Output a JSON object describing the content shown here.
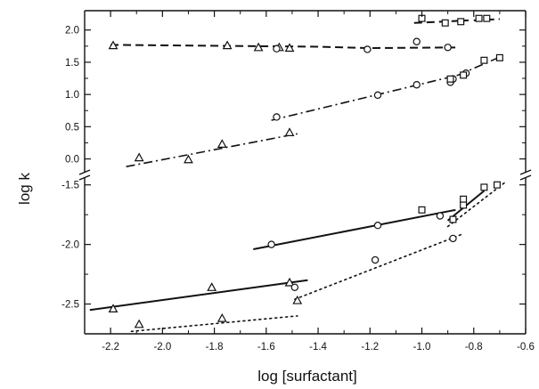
{
  "chart_data": {
    "type": "scatter",
    "title": "",
    "xlabel": "log [surfactant]",
    "ylabel": "log k",
    "xlim": [
      -2.3,
      -0.6
    ],
    "x_ticks": [
      "-2.2",
      "-2.0",
      "-1.8",
      "-1.6",
      "-1.4",
      "-1.2",
      "-1.0",
      "-0.8",
      "-0.6"
    ],
    "x_tick_values": [
      -2.2,
      -2.0,
      -1.8,
      -1.6,
      -1.4,
      -1.2,
      -1.0,
      -0.8,
      -0.6
    ],
    "panels": [
      {
        "position": "upper",
        "ylim": [
          -0.2,
          2.3
        ],
        "y_ticks": [
          "0.0",
          "0.5",
          "1.0",
          "1.5",
          "2.0"
        ],
        "y_tick_values": [
          0.0,
          0.5,
          1.0,
          1.5,
          2.0
        ],
        "series": [
          {
            "marker": "triangle",
            "x": [
              -2.19,
              -1.75,
              -1.63,
              -1.55,
              -1.51
            ],
            "y": [
              1.76,
              1.76,
              1.73,
              1.73,
              1.72
            ]
          },
          {
            "marker": "circle",
            "x": [
              -1.56,
              -1.21,
              -1.02,
              -0.9
            ],
            "y": [
              1.71,
              1.7,
              1.82,
              1.73
            ]
          },
          {
            "marker": "square",
            "x": [
              -1.0,
              -0.91,
              -0.85,
              -0.78,
              -0.75
            ],
            "y": [
              2.18,
              2.11,
              2.13,
              2.18,
              2.18
            ]
          },
          {
            "marker": "triangle",
            "x": [
              -2.09,
              -1.9,
              -1.77,
              -1.51
            ],
            "y": [
              0.02,
              -0.01,
              0.23,
              0.41
            ]
          },
          {
            "marker": "circle",
            "x": [
              -1.56,
              -1.17,
              -1.02,
              -0.89,
              -0.88,
              -0.83
            ],
            "y": [
              0.65,
              0.99,
              1.15,
              1.19,
              1.24,
              1.33
            ]
          },
          {
            "marker": "square",
            "x": [
              -0.89,
              -0.84,
              -0.76,
              -0.7
            ],
            "y": [
              1.24,
              1.3,
              1.53,
              1.57
            ]
          }
        ],
        "lines": [
          {
            "style": "dashed",
            "x": [
              -2.2,
              -1.4,
              -1.2,
              -0.86
            ],
            "y": [
              1.77,
              1.74,
              1.72,
              1.73
            ]
          },
          {
            "style": "dashed",
            "x": [
              -1.03,
              -0.82
            ],
            "y": [
              2.11,
              2.15
            ]
          },
          {
            "style": "dashed",
            "x": [
              -0.8,
              -0.7
            ],
            "y": [
              2.15,
              2.17
            ]
          },
          {
            "style": "dash-dot",
            "x": [
              -2.14,
              -1.48
            ],
            "y": [
              -0.12,
              0.39
            ]
          },
          {
            "style": "dash-dot",
            "x": [
              -1.58,
              -0.86
            ],
            "y": [
              0.6,
              1.3
            ]
          },
          {
            "style": "dash-dot",
            "x": [
              -0.86,
              -0.7
            ],
            "y": [
              1.3,
              1.58
            ]
          }
        ]
      },
      {
        "position": "lower",
        "ylim": [
          -2.75,
          -1.45
        ],
        "y_ticks": [
          "-1.5",
          "-2.0",
          "-2.5"
        ],
        "y_tick_values": [
          -1.5,
          -2.0,
          -2.5
        ],
        "series": [
          {
            "marker": "circle",
            "x": [
              -1.58,
              -1.17,
              -0.93,
              -0.88
            ],
            "y": [
              -2.0,
              -1.84,
              -1.76,
              -1.95
            ]
          },
          {
            "marker": "square",
            "x": [
              -1.0,
              -0.88,
              -0.84,
              -0.84,
              -0.76,
              -0.71
            ],
            "y": [
              -1.71,
              -1.79,
              -1.62,
              -1.67,
              -1.52,
              -1.5
            ]
          },
          {
            "marker": "triangle",
            "x": [
              -2.19,
              -1.81,
              -1.51,
              -1.48
            ],
            "y": [
              -2.54,
              -2.36,
              -2.32,
              -2.47
            ]
          },
          {
            "marker": "triangle",
            "x": [
              -2.09,
              -1.77
            ],
            "y": [
              -2.67,
              -2.62
            ]
          },
          {
            "marker": "circle",
            "x": [
              -1.49,
              -1.18
            ],
            "y": [
              -2.36,
              -2.13
            ]
          }
        ],
        "lines": [
          {
            "style": "solid",
            "x": [
              -2.28,
              -1.44
            ],
            "y": [
              -2.55,
              -2.3
            ]
          },
          {
            "style": "solid",
            "x": [
              -1.65,
              -0.87
            ],
            "y": [
              -2.04,
              -1.71
            ]
          },
          {
            "style": "solid",
            "x": [
              -0.9,
              -0.76
            ],
            "y": [
              -1.8,
              -1.55
            ]
          },
          {
            "style": "dotted",
            "x": [
              -2.12,
              -1.48
            ],
            "y": [
              -2.73,
              -2.6
            ]
          },
          {
            "style": "dotted",
            "x": [
              -1.49,
              -0.84
            ],
            "y": [
              -2.46,
              -1.91
            ]
          },
          {
            "style": "dotted",
            "x": [
              -0.9,
              -0.68
            ],
            "y": [
              -1.85,
              -1.48
            ]
          }
        ]
      }
    ]
  }
}
